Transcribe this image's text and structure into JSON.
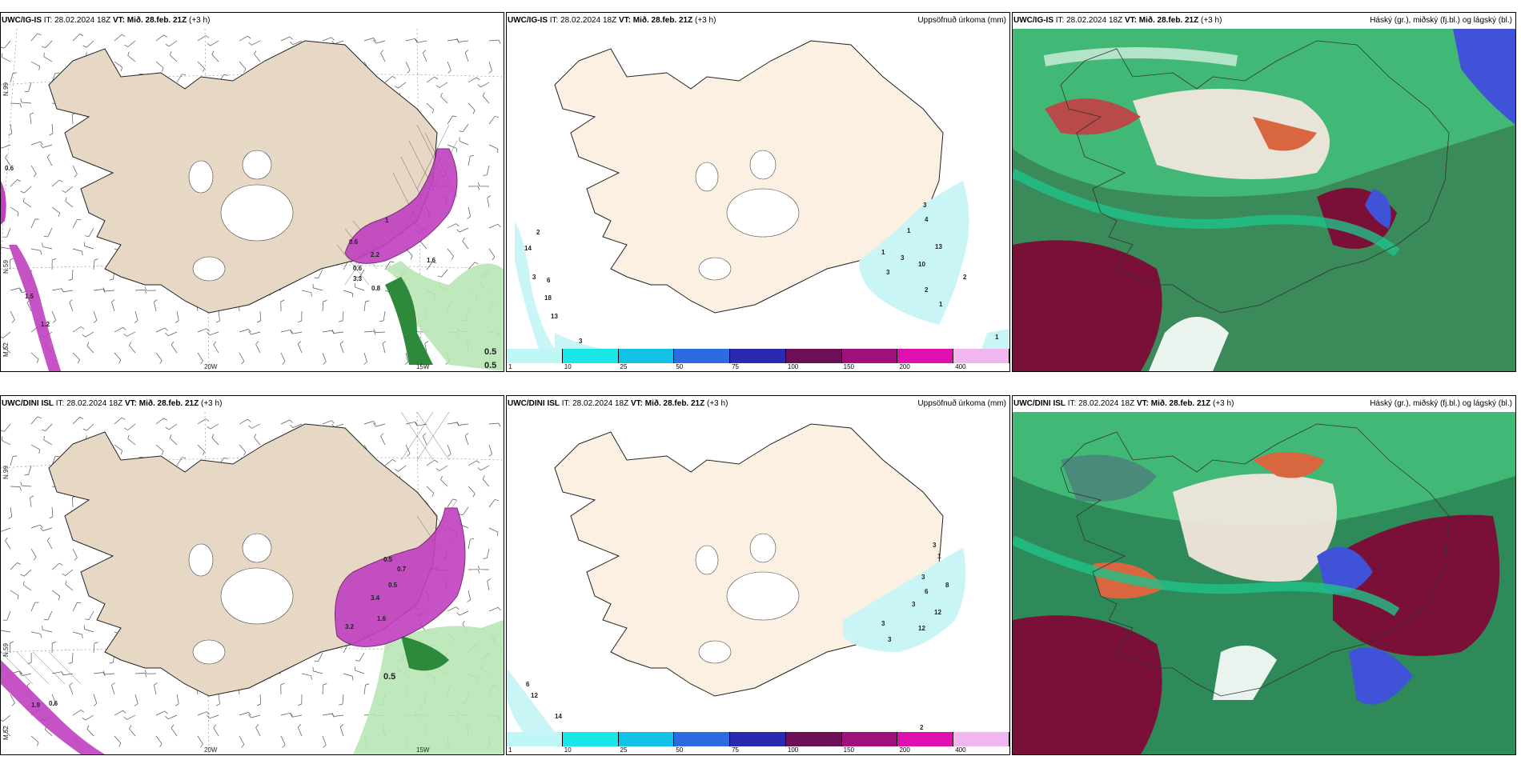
{
  "panels": [
    {
      "id": "ig-wind",
      "header": {
        "model": "UWC/IG-IS",
        "it": "IT: 28.02.2024 18Z",
        "vt_label": "VT:",
        "vt": "Mið. 28.feb. 21Z",
        "offset": "(+3 h)"
      },
      "right_title": "",
      "coords": {
        "lat_top": "N.99",
        "lat_mid": "N.59",
        "lon_left": "20W",
        "lon_right": "15W",
        "lon_edge": "M.52"
      },
      "values": [
        "0.6",
        "0.6",
        "1.5",
        "1.2",
        "1",
        "0.6",
        "2.2",
        "3.3",
        "0.8",
        "0.5",
        "0.5",
        "1.6"
      ]
    },
    {
      "id": "ig-precip",
      "header": {
        "model": "UWC/IG-IS",
        "it": "IT: 28.02.2024 18Z",
        "vt_label": "VT:",
        "vt": "Mið. 28.feb. 21Z",
        "offset": "(+3 h)"
      },
      "right_title": "Uppsöfnuð úrkoma (mm)",
      "values": [
        "2",
        "14",
        "3",
        "6",
        "18",
        "13",
        "3",
        "3",
        "4",
        "1",
        "13",
        "10",
        "3",
        "2",
        "2",
        "1",
        "1",
        "1",
        "3"
      ]
    },
    {
      "id": "ig-cloud",
      "header": {
        "model": "UWC/IG-IS",
        "it": "IT: 28.02.2024 18Z",
        "vt_label": "VT:",
        "vt": "Mið. 28.feb. 21Z",
        "offset": "(+3 h)"
      },
      "right_title": "Háský (gr.), miðský (fj.bl.) og lágský (bl.)"
    },
    {
      "id": "dini-wind",
      "header": {
        "model": "UWC/DINI ISL",
        "it": "IT: 28.02.2024 18Z",
        "vt_label": "VT:",
        "vt": "Mið. 28.feb. 21Z",
        "offset": "(+3 h)"
      },
      "right_title": "",
      "coords": {
        "lat_top": "N.99",
        "lat_mid": "N.59",
        "lon_left": "20W",
        "lon_right": "15W",
        "lon_edge": "M.52"
      },
      "values": [
        "0.5",
        "0.6",
        "1.9",
        "3.4",
        "1.6",
        "3.2",
        "0.7",
        "0.5",
        "0.5"
      ]
    },
    {
      "id": "dini-precip",
      "header": {
        "model": "UWC/DINI ISL",
        "it": "IT: 28.02.2024 18Z",
        "vt_label": "VT:",
        "vt": "Mið. 28.feb. 21Z",
        "offset": "(+3 h)"
      },
      "right_title": "Uppsöfnuð úrkoma (mm)",
      "values": [
        "6",
        "12",
        "14",
        "3",
        "1",
        "3",
        "6",
        "3",
        "8",
        "12",
        "12",
        "3",
        "3",
        "2"
      ]
    },
    {
      "id": "dini-cloud",
      "header": {
        "model": "UWC/DINI ISL",
        "it": "IT: 28.02.2024 18Z",
        "vt_label": "VT:",
        "vt": "Mið. 28.feb. 21Z",
        "offset": "(+3 h)"
      },
      "right_title": "Háský (gr.), miðský (fj.bl.) og lágský (bl.)"
    }
  ],
  "precip_legend": {
    "labels": [
      "1",
      "10",
      "25",
      "50",
      "75",
      "100",
      "150",
      "200",
      "400"
    ],
    "colors": [
      "#bff6f6",
      "#19e6e6",
      "#11c2e6",
      "#2d6be0",
      "#2a2ab0",
      "#6c0f57",
      "#a00f7c",
      "#e010b0",
      "#f0b6f0"
    ]
  },
  "colors": {
    "land": "#fbf0e2",
    "land_wind": "#e7d7c5",
    "precip_light": "#c9f5f7",
    "snow_purple": "#c040c0",
    "green_light": "#b8e6b5",
    "green_dark": "#2d8a3a",
    "cloud_green": "#38b56d",
    "cloud_red": "#b84a4a",
    "cloud_maroon": "#7a1038",
    "cloud_blue": "#3f52d8"
  }
}
